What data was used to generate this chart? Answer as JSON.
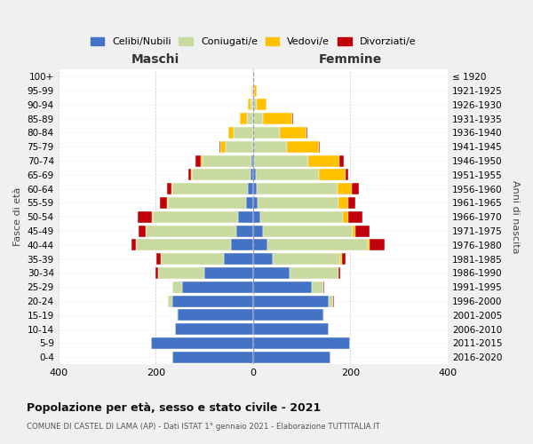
{
  "age_groups": [
    "0-4",
    "5-9",
    "10-14",
    "15-19",
    "20-24",
    "25-29",
    "30-34",
    "35-39",
    "40-44",
    "45-49",
    "50-54",
    "55-59",
    "60-64",
    "65-69",
    "70-74",
    "75-79",
    "80-84",
    "85-89",
    "90-94",
    "95-99",
    "100+"
  ],
  "birth_years": [
    "2016-2020",
    "2011-2015",
    "2006-2010",
    "2001-2005",
    "1996-2000",
    "1991-1995",
    "1986-1990",
    "1981-1985",
    "1976-1980",
    "1971-1975",
    "1966-1970",
    "1961-1965",
    "1956-1960",
    "1951-1955",
    "1946-1950",
    "1941-1945",
    "1936-1940",
    "1931-1935",
    "1926-1930",
    "1921-1925",
    "≤ 1920"
  ],
  "male": {
    "celibi": [
      165,
      210,
      160,
      155,
      165,
      145,
      100,
      60,
      45,
      35,
      30,
      15,
      10,
      5,
      3,
      2,
      0,
      0,
      0,
      0,
      0
    ],
    "coniugati": [
      0,
      0,
      0,
      2,
      10,
      20,
      95,
      130,
      195,
      185,
      175,
      160,
      155,
      120,
      100,
      55,
      40,
      12,
      5,
      2,
      0
    ],
    "vedovi": [
      0,
      0,
      0,
      0,
      0,
      0,
      0,
      0,
      0,
      0,
      2,
      2,
      2,
      3,
      5,
      10,
      10,
      15,
      5,
      2,
      0
    ],
    "divorziati": [
      0,
      0,
      0,
      0,
      0,
      0,
      5,
      8,
      10,
      15,
      30,
      15,
      10,
      5,
      10,
      2,
      0,
      0,
      0,
      0,
      0
    ]
  },
  "female": {
    "nubili": [
      160,
      200,
      155,
      145,
      155,
      120,
      75,
      40,
      30,
      20,
      15,
      10,
      8,
      5,
      3,
      0,
      0,
      0,
      0,
      0,
      0
    ],
    "coniugate": [
      0,
      0,
      0,
      2,
      10,
      25,
      100,
      140,
      205,
      185,
      170,
      165,
      165,
      130,
      110,
      70,
      55,
      20,
      8,
      2,
      0
    ],
    "vedove": [
      0,
      0,
      0,
      0,
      0,
      0,
      0,
      2,
      5,
      5,
      10,
      20,
      30,
      55,
      65,
      65,
      55,
      60,
      20,
      5,
      0
    ],
    "divorziate": [
      0,
      0,
      0,
      0,
      2,
      2,
      5,
      8,
      30,
      30,
      30,
      15,
      15,
      5,
      8,
      2,
      2,
      2,
      0,
      0,
      0
    ]
  },
  "colors": {
    "celibi": "#4472c4",
    "coniugati": "#c8daa0",
    "vedovi": "#ffc000",
    "divorziati": "#c0000a"
  },
  "xlim": 400,
  "title": "Popolazione per età, sesso e stato civile - 2021",
  "subtitle": "COMUNE DI CASTEL DI LAMA (AP) - Dati ISTAT 1° gennaio 2021 - Elaborazione TUTTITALIA.IT",
  "xlabel_left": "Maschi",
  "xlabel_right": "Femmine",
  "ylabel_left": "Fasce di età",
  "ylabel_right": "Anni di nascita",
  "bg_color": "#f0f0f0",
  "plot_bg_color": "#ffffff"
}
